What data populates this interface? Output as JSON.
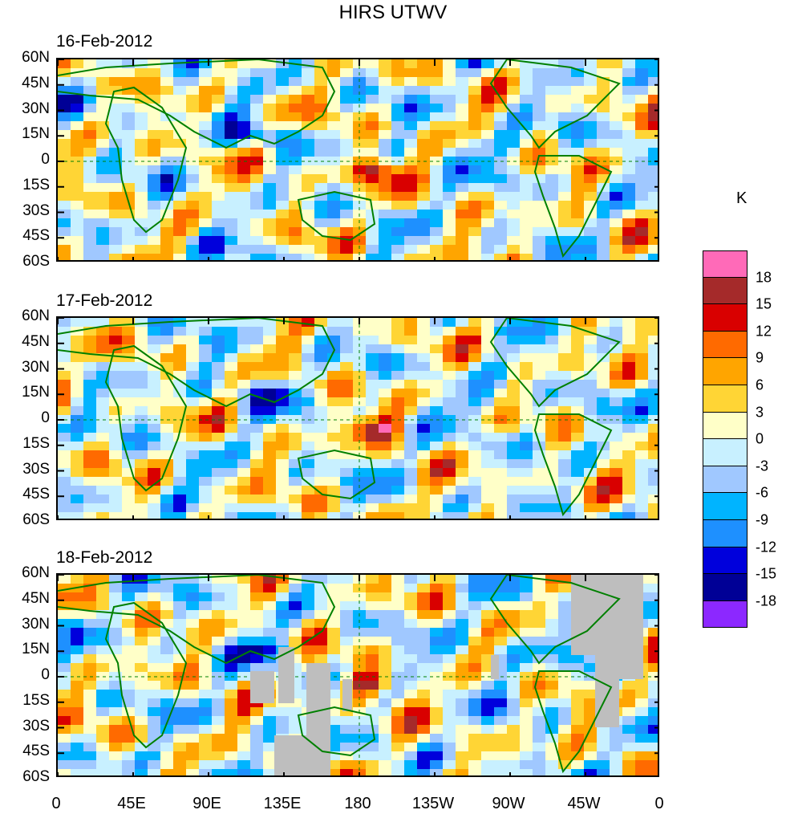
{
  "title": "HIRS UTWV",
  "panels": [
    {
      "date": "16-Feb-2012",
      "missing_regions": []
    },
    {
      "date": "17-Feb-2012",
      "missing_regions": []
    },
    {
      "date": "18-Feb-2012",
      "missing_regions": [
        "Australia",
        "western Pacific",
        "North Atlantic",
        "South America"
      ]
    }
  ],
  "lat_labels": [
    "60N",
    "45N",
    "30N",
    "15N",
    "0",
    "15S",
    "30S",
    "45S",
    "60S"
  ],
  "lon_labels": [
    "0",
    "45E",
    "90E",
    "135E",
    "180",
    "135W",
    "90W",
    "45W",
    "0"
  ],
  "colorbar": {
    "unit": "K",
    "labels": [
      "18",
      "15",
      "12",
      "9",
      "6",
      "3",
      "0",
      "-3",
      "-6",
      "-9",
      "-12",
      "-15",
      "-18"
    ],
    "colors": [
      "#ff6ab8",
      "#a52a2a",
      "#d90000",
      "#ff6a00",
      "#ffa500",
      "#ffd535",
      "#ffffc8",
      "#c8f0ff",
      "#a0c8ff",
      "#00b4ff",
      "#1e90ff",
      "#0000dc",
      "#000096",
      "#8c28ff"
    ]
  },
  "colors": {
    "land_outline": "#008000",
    "missing": "#bebebe",
    "frame": "#000000"
  }
}
